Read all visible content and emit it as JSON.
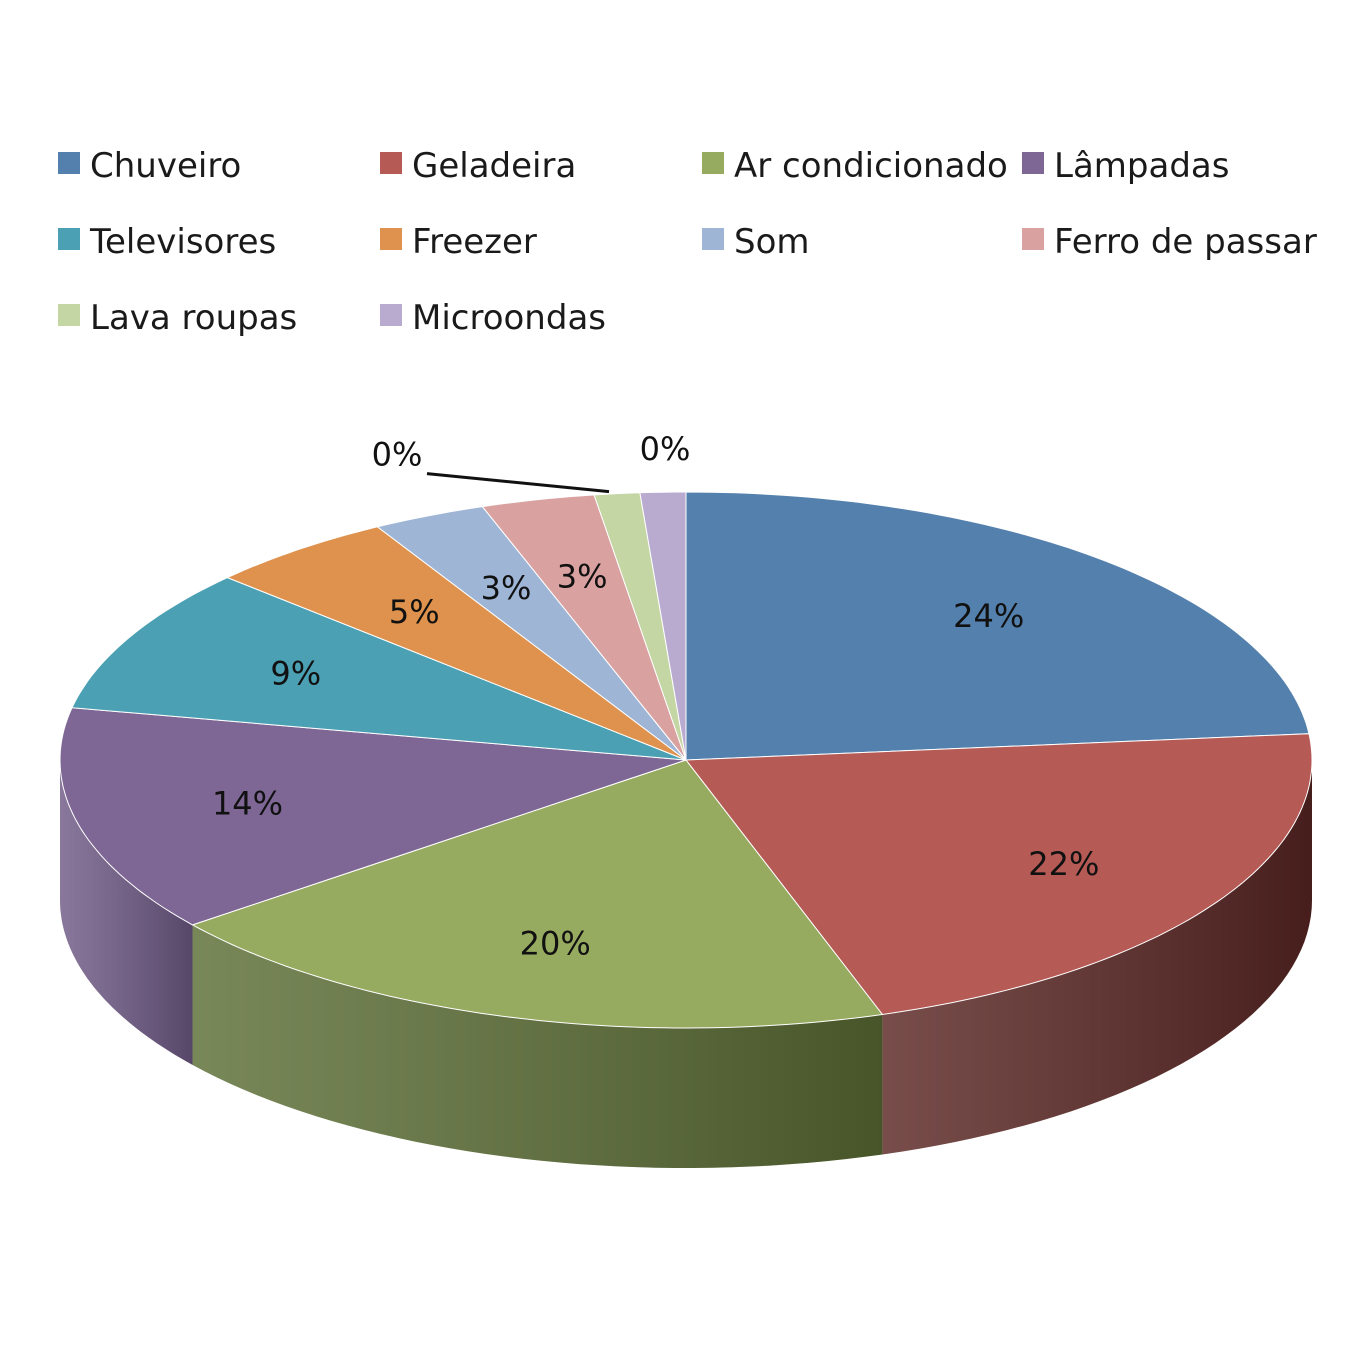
{
  "chart_data": {
    "type": "pie",
    "style": "3d",
    "legend_position": "top",
    "categories": [
      "Chuveiro",
      "Geladeira",
      "Ar condicionado",
      "Lâmpadas",
      "Televisores",
      "Freezer",
      "Som",
      "Ferro de passar",
      "Lava roupas",
      "Microondas"
    ],
    "values": [
      24,
      22,
      20,
      14,
      9,
      5,
      3,
      3,
      0,
      0
    ],
    "labels": [
      "24%",
      "22%",
      "20%",
      "14%",
      "9%",
      "5%",
      "3%",
      "3%",
      "0%",
      "0%"
    ],
    "colors": [
      "#5480ad",
      "#b65a55",
      "#97ab60",
      "#7e6795",
      "#4ba0b3",
      "#de924d",
      "#9fb5d6",
      "#d9a2a0",
      "#c4d6a4",
      "#b9aad0"
    ],
    "side_colors": [
      "#2f4a6a",
      "#5a2623",
      "#5b6d34",
      "#6f5a86",
      "#2c6a78",
      "#955c25",
      "#6a7fa0",
      "#9b6664",
      "#8ea072",
      "#8676a0"
    ]
  }
}
